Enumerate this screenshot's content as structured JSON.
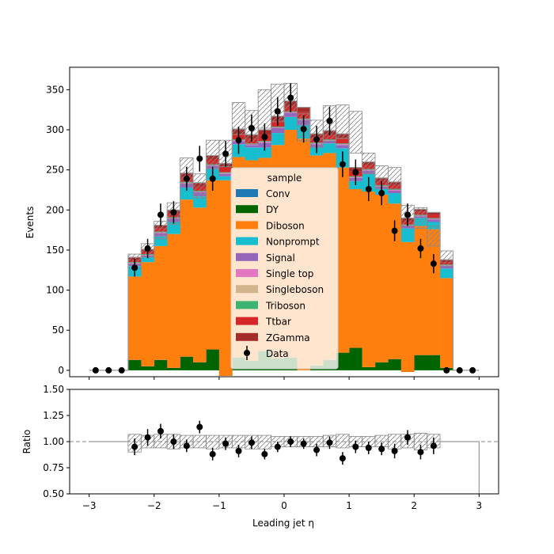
{
  "chart_data": {
    "type": "bar",
    "stacked": true,
    "xlabel": "Leading jet  η",
    "main_panel": {
      "ylabel": "Events",
      "xlim": [
        -3.3,
        3.3
      ],
      "ylim": [
        -8,
        378
      ],
      "xticks": [
        -3,
        -2,
        -1,
        0,
        1,
        2,
        3
      ],
      "xtick_labels": [
        "−3",
        "−2",
        "−1",
        "0",
        "1",
        "2",
        "3"
      ],
      "yticks": [
        0,
        50,
        100,
        150,
        200,
        250,
        300,
        350
      ],
      "ytick_labels": [
        "0",
        "50",
        "100",
        "150",
        "200",
        "250",
        "300",
        "350"
      ]
    },
    "ratio_panel": {
      "ylabel": "Ratio",
      "ylim": [
        0.5,
        1.5
      ],
      "yticks": [
        0.5,
        0.75,
        1.0,
        1.25,
        1.5
      ],
      "ytick_labels": [
        "0.50",
        "0.75",
        "1.00",
        "1.25",
        "1.50"
      ],
      "reference_line": 1.0
    },
    "bin_edges": [
      -3.0,
      -2.8,
      -2.6,
      -2.4,
      -2.2,
      -2.0,
      -1.8,
      -1.6,
      -1.4,
      -1.2,
      -1.0,
      -0.8,
      -0.6,
      -0.4,
      -0.2,
      0.0,
      0.2,
      0.4,
      0.6,
      0.8,
      1.0,
      1.2,
      1.4,
      1.6,
      1.8,
      2.0,
      2.2,
      2.4,
      2.6,
      2.8,
      3.0
    ],
    "series": [
      {
        "name": "Conv",
        "color": "#1f77b4",
        "values": [
          0,
          0,
          0,
          0,
          0,
          0,
          0,
          0,
          0,
          0,
          0,
          0,
          0,
          0,
          0,
          0,
          0,
          0,
          0,
          0,
          0,
          0,
          0,
          0,
          0,
          0,
          0,
          0,
          0,
          0
        ]
      },
      {
        "name": "DY",
        "color": "#006400",
        "values": [
          0,
          0,
          0,
          13,
          5,
          13,
          3,
          17,
          10,
          26,
          -7,
          16,
          12,
          24,
          15,
          16,
          0,
          6,
          13,
          22,
          28,
          4,
          10,
          14,
          -2,
          19,
          19,
          3,
          0,
          0
        ]
      },
      {
        "name": "Diboson",
        "color": "#ff7f0e",
        "values": [
          0,
          0,
          0,
          104,
          130,
          142,
          167,
          196,
          193,
          211,
          244,
          250,
          250,
          241,
          266,
          284,
          289,
          262,
          258,
          231,
          198,
          219,
          209,
          194,
          162,
          161,
          157,
          112,
          0,
          0
        ]
      },
      {
        "name": "Nonprompt",
        "color": "#17becf",
        "values": [
          0,
          0,
          0,
          13,
          6,
          12,
          15,
          15,
          14,
          14,
          5,
          16,
          16,
          13,
          15,
          16,
          17,
          10,
          12,
          24,
          10,
          22,
          7,
          13,
          17,
          10,
          9,
          12,
          0,
          0
        ]
      },
      {
        "name": "Signal",
        "color": "#9467bd",
        "values": [
          0,
          0,
          0,
          3,
          2,
          4,
          4,
          5,
          5,
          4,
          3,
          4,
          3,
          6,
          6,
          5,
          6,
          4,
          3,
          4,
          4,
          4,
          3,
          3,
          3,
          2,
          3,
          3,
          0,
          0
        ]
      },
      {
        "name": "Single top",
        "color": "#e377c2",
        "values": [
          0,
          0,
          0,
          1,
          1,
          1,
          1,
          1,
          1,
          1,
          1,
          1,
          1,
          1,
          1,
          1,
          1,
          1,
          1,
          1,
          1,
          1,
          1,
          1,
          1,
          1,
          1,
          1,
          0,
          0
        ]
      },
      {
        "name": "Singleboson",
        "color": "#d2b48c",
        "values": [
          0,
          0,
          0,
          0,
          0,
          0,
          0,
          0,
          0,
          0,
          0,
          0,
          0,
          0,
          0,
          0,
          0,
          0,
          0,
          0,
          0,
          0,
          0,
          0,
          0,
          0,
          0,
          0,
          0,
          0
        ]
      },
      {
        "name": "Triboson",
        "color": "#3cb371",
        "values": [
          0,
          0,
          0,
          1,
          1,
          1,
          1,
          1,
          1,
          1,
          1,
          1,
          1,
          1,
          1,
          1,
          1,
          1,
          1,
          1,
          1,
          1,
          1,
          1,
          1,
          1,
          1,
          1,
          0,
          0
        ]
      },
      {
        "name": "Ttbar",
        "color": "#d62728",
        "values": [
          0,
          0,
          0,
          3,
          3,
          4,
          5,
          6,
          5,
          6,
          6,
          7,
          6,
          8,
          7,
          7,
          8,
          6,
          6,
          7,
          6,
          5,
          5,
          5,
          4,
          4,
          4,
          3,
          0,
          0
        ]
      },
      {
        "name": "ZGamma",
        "color": "#a52a2a",
        "values": [
          0,
          0,
          0,
          3,
          3,
          4,
          4,
          5,
          5,
          5,
          5,
          6,
          5,
          6,
          6,
          6,
          6,
          5,
          5,
          5,
          5,
          4,
          4,
          4,
          4,
          3,
          3,
          3,
          0,
          0
        ]
      }
    ],
    "uncertainty_band": {
      "up": [
        0,
        0,
        0,
        145,
        158,
        186,
        209,
        265,
        245,
        287,
        287,
        334,
        324,
        350,
        357,
        358,
        320,
        312,
        330,
        331,
        323,
        271,
        255,
        253,
        206,
        203,
        180,
        149,
        0,
        0
      ],
      "down": [
        0,
        0,
        0,
        127,
        141,
        164,
        182,
        232,
        215,
        252,
        254,
        294,
        282,
        302,
        310,
        322,
        286,
        278,
        286,
        289,
        271,
        245,
        227,
        226,
        180,
        177,
        155,
        130,
        0,
        0
      ]
    },
    "data": {
      "name": "Data",
      "x": [
        -2.9,
        -2.7,
        -2.5,
        -2.3,
        -2.1,
        -1.9,
        -1.7,
        -1.5,
        -1.3,
        -1.1,
        -0.9,
        -0.7,
        -0.5,
        -0.3,
        -0.1,
        0.1,
        0.3,
        0.5,
        0.7,
        0.9,
        1.1,
        1.3,
        1.5,
        1.7,
        1.9,
        2.1,
        2.3,
        2.5,
        2.7,
        2.9
      ],
      "y": [
        0,
        0,
        0,
        128,
        152,
        194,
        197,
        239,
        264,
        239,
        270,
        287,
        302,
        291,
        323,
        340,
        301,
        288,
        311,
        257,
        247,
        226,
        221,
        174,
        194,
        152,
        133,
        0,
        0,
        0
      ],
      "yerr": [
        0,
        0,
        0,
        11,
        12,
        14,
        14,
        15,
        16,
        15,
        16,
        17,
        17,
        17,
        18,
        18,
        17,
        17,
        18,
        16,
        16,
        15,
        15,
        13,
        14,
        12,
        12,
        0,
        0,
        0
      ]
    },
    "ratio": {
      "x": [
        -2.3,
        -2.1,
        -1.9,
        -1.7,
        -1.5,
        -1.3,
        -1.1,
        -0.9,
        -0.7,
        -0.5,
        -0.3,
        -0.1,
        0.1,
        0.3,
        0.5,
        0.7,
        0.9,
        1.1,
        1.3,
        1.5,
        1.7,
        1.9,
        2.1,
        2.3
      ],
      "y": [
        0.95,
        1.04,
        1.1,
        1.0,
        0.96,
        1.14,
        0.88,
        0.98,
        0.91,
        0.99,
        0.88,
        0.95,
        1.0,
        0.98,
        0.92,
        0.99,
        0.84,
        0.95,
        0.94,
        0.93,
        0.91,
        1.04,
        0.9,
        0.96
      ],
      "yerr": [
        0.08,
        0.08,
        0.07,
        0.07,
        0.06,
        0.06,
        0.06,
        0.06,
        0.06,
        0.06,
        0.05,
        0.05,
        0.05,
        0.05,
        0.06,
        0.06,
        0.06,
        0.06,
        0.06,
        0.06,
        0.07,
        0.07,
        0.07,
        0.08
      ],
      "band_up": [
        1.07,
        1.06,
        1.07,
        1.07,
        1.06,
        1.06,
        1.06,
        1.06,
        1.06,
        1.06,
        1.06,
        1.05,
        1.05,
        1.05,
        1.05,
        1.06,
        1.07,
        1.05,
        1.05,
        1.06,
        1.07,
        1.07,
        1.08,
        1.07
      ],
      "band_down": [
        0.9,
        0.94,
        0.94,
        0.93,
        0.94,
        0.94,
        0.93,
        0.94,
        0.94,
        0.93,
        0.93,
        0.95,
        0.95,
        0.95,
        0.95,
        0.95,
        0.94,
        0.95,
        0.95,
        0.95,
        0.93,
        0.94,
        0.92,
        0.94
      ]
    },
    "legend": {
      "title": "sample",
      "placement": "center",
      "entries": [
        "Conv",
        "DY",
        "Diboson",
        "Nonprompt",
        "Signal",
        "Single top",
        "Singleboson",
        "Triboson",
        "Ttbar",
        "ZGamma",
        "Data"
      ]
    }
  }
}
